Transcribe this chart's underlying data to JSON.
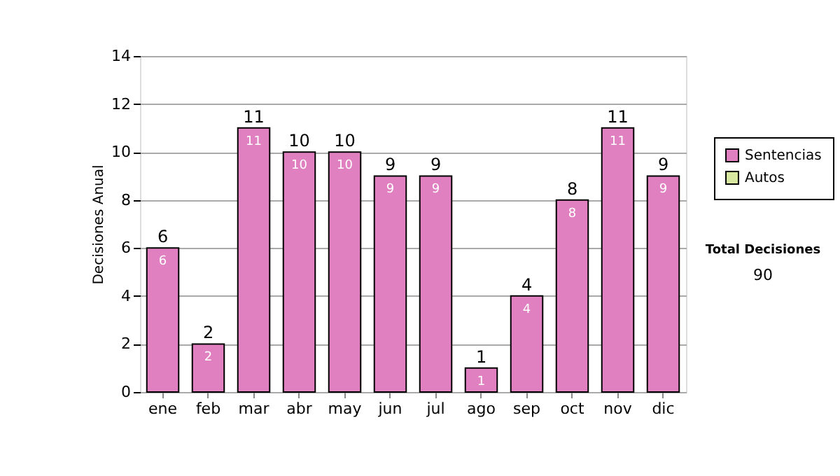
{
  "chart_data": {
    "type": "bar",
    "stacked": true,
    "ylabel": "Decisiones Anual",
    "categories": [
      "ene",
      "feb",
      "mar",
      "abr",
      "may",
      "jun",
      "jul",
      "ago",
      "sep",
      "oct",
      "nov",
      "dic"
    ],
    "series": [
      {
        "name": "Sentencias",
        "color": "#e080c0",
        "values": [
          6,
          2,
          11,
          10,
          10,
          9,
          9,
          1,
          4,
          8,
          11,
          9
        ],
        "value_labels": [
          "6",
          "2",
          "11",
          "10",
          "10",
          "9",
          "9",
          "1",
          "4",
          "8",
          "11",
          "9"
        ]
      },
      {
        "name": "Autos",
        "color": "#d8e8a0",
        "values": [
          null,
          null,
          null,
          null,
          null,
          null,
          null,
          null,
          null,
          null,
          null,
          null
        ]
      }
    ],
    "totals": [
      "6",
      "2",
      "11",
      "10",
      "10",
      "9",
      "9",
      "1",
      "4",
      "8",
      "11",
      "9"
    ],
    "ylim": [
      0,
      14
    ],
    "yticks": [
      0,
      2,
      4,
      6,
      8,
      10,
      12,
      14
    ],
    "grid": "y",
    "legend": "right",
    "annotations": [
      "Total Decisiones",
      "90"
    ]
  }
}
